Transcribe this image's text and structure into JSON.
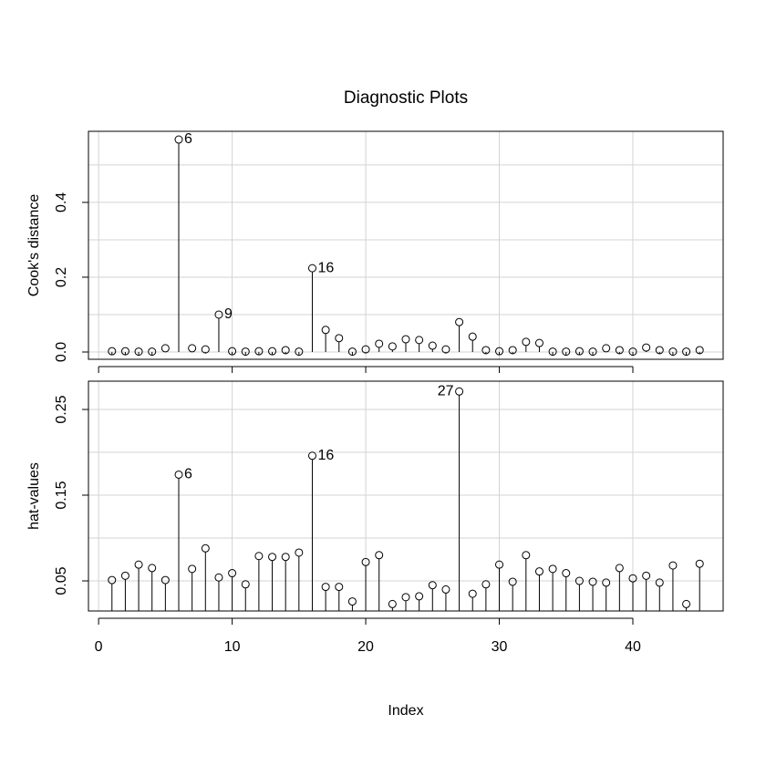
{
  "chart_data": [
    {
      "type": "stem",
      "title": "Diagnostic Plots",
      "ylabel": "Cook's distance",
      "x": [
        1,
        2,
        3,
        4,
        5,
        6,
        7,
        8,
        9,
        10,
        11,
        12,
        13,
        14,
        15,
        16,
        17,
        18,
        19,
        20,
        21,
        22,
        23,
        24,
        25,
        26,
        27,
        28,
        29,
        30,
        31,
        32,
        33,
        34,
        35,
        36,
        37,
        38,
        39,
        40,
        41,
        42,
        43,
        44,
        45
      ],
      "values": [
        0.002,
        0.002,
        0.001,
        0.001,
        0.01,
        0.568,
        0.01,
        0.007,
        0.1,
        0.002,
        0.001,
        0.002,
        0.002,
        0.005,
        0.001,
        0.224,
        0.059,
        0.037,
        0.001,
        0.007,
        0.022,
        0.015,
        0.034,
        0.032,
        0.017,
        0.007,
        0.08,
        0.041,
        0.005,
        0.002,
        0.005,
        0.027,
        0.024,
        0.001,
        0.001,
        0.002,
        0.001,
        0.01,
        0.005,
        0.001,
        0.012,
        0.005,
        0.001,
        0.001,
        0.005
      ],
      "labeled_points": [
        6,
        9,
        16
      ],
      "xlim": [
        -0.76,
        46.76
      ],
      "xticks": [
        0,
        10,
        20,
        30,
        40
      ],
      "ylim": [
        -0.0195,
        0.59
      ],
      "yticks": [
        {
          "value": 0,
          "label": "0.0"
        },
        {
          "value": 0.2,
          "label": "0.2"
        },
        {
          "value": 0.4,
          "label": "0.4"
        }
      ],
      "ygrid": [
        0,
        0.1,
        0.2,
        0.3,
        0.4,
        0.5
      ],
      "grid": true,
      "color": "#000000"
    },
    {
      "type": "stem",
      "ylabel": "hat-values",
      "xlabel": "Index",
      "x": [
        1,
        2,
        3,
        4,
        5,
        6,
        7,
        8,
        9,
        10,
        11,
        12,
        13,
        14,
        15,
        16,
        17,
        18,
        19,
        20,
        21,
        22,
        23,
        24,
        25,
        26,
        27,
        28,
        29,
        30,
        31,
        32,
        33,
        34,
        35,
        36,
        37,
        38,
        39,
        40,
        41,
        42,
        43,
        44,
        45
      ],
      "values": [
        0.051,
        0.056,
        0.069,
        0.065,
        0.051,
        0.174,
        0.064,
        0.088,
        0.054,
        0.059,
        0.046,
        0.079,
        0.078,
        0.078,
        0.083,
        0.196,
        0.043,
        0.043,
        0.026,
        0.072,
        0.08,
        0.023,
        0.031,
        0.032,
        0.045,
        0.04,
        0.271,
        0.035,
        0.046,
        0.069,
        0.049,
        0.08,
        0.061,
        0.064,
        0.059,
        0.05,
        0.049,
        0.048,
        0.065,
        0.053,
        0.056,
        0.048,
        0.068,
        0.023,
        0.07
      ],
      "labeled_points": [
        6,
        16,
        27
      ],
      "xlim": [
        -0.76,
        46.76
      ],
      "xticks": [
        0,
        10,
        20,
        30,
        40
      ],
      "ylim": [
        0.0149,
        0.283
      ],
      "yticks": [
        0.05,
        0.15,
        0.25
      ],
      "ygrid": [
        0.05,
        0.1,
        0.15,
        0.2,
        0.25
      ],
      "grid": true,
      "color": "#000000"
    }
  ]
}
